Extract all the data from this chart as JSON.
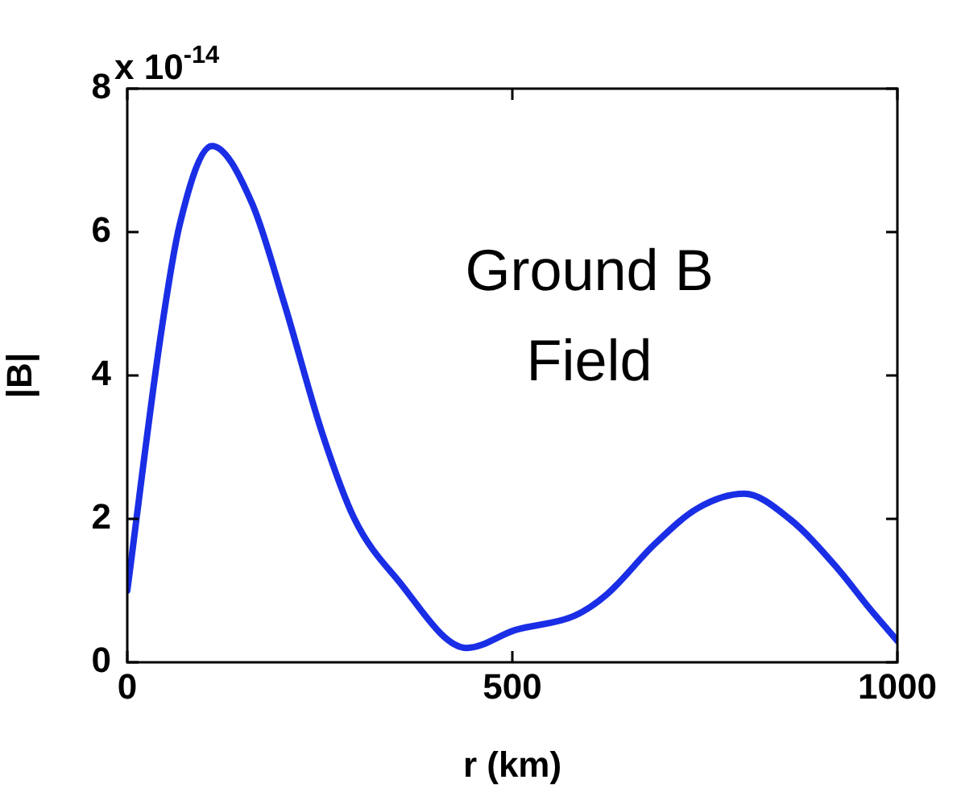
{
  "chart_data": {
    "type": "line",
    "xlabel": "r (km)",
    "ylabel": "|B|",
    "annotations": [
      "x 10$^{-14}$",
      "Ground B\nField"
    ],
    "x": [
      0,
      44,
      68,
      110,
      162,
      204,
      253,
      295,
      351,
      441,
      504,
      581,
      623,
      685,
      741,
      801,
      860,
      923,
      964,
      1000
    ],
    "series": [
      {
        "color": "#1a2ee6",
        "values": [
          1.0,
          4.6,
          6.1,
          7.2,
          6.4,
          5.0,
          3.2,
          2.0,
          1.15,
          0.2,
          0.45,
          0.65,
          0.95,
          1.65,
          2.15,
          2.35,
          2.0,
          1.3,
          0.75,
          0.3
        ]
      }
    ],
    "xlim": [
      0,
      1000
    ],
    "xticks": [
      0,
      500,
      1000
    ],
    "ylim": [
      0,
      8
    ],
    "yticks": [
      0,
      2,
      4,
      6,
      8
    ],
    "grid": false,
    "legend": false,
    "marker": "none",
    "line_style": "solid"
  }
}
